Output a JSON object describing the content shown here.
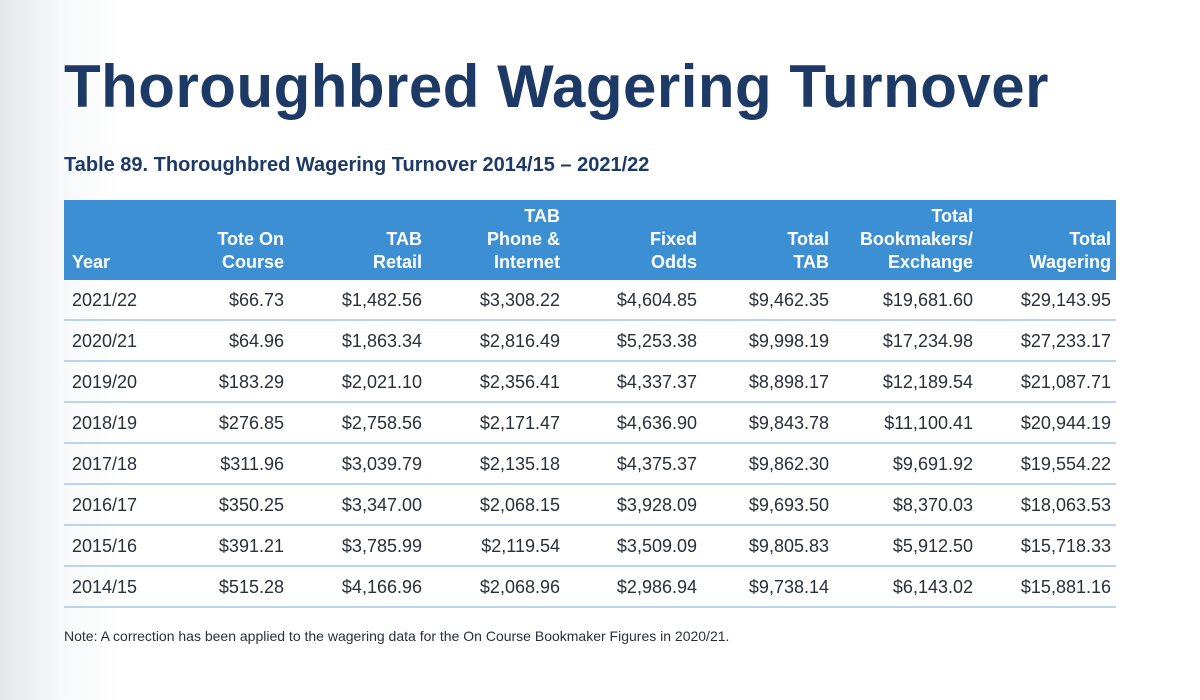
{
  "header": {
    "title": "Thoroughbred Wagering Turnover"
  },
  "table": {
    "caption": "Table 89. Thoroughbred Wagering Turnover 2014/15 – 2021/22",
    "columns": [
      [
        "Year"
      ],
      [
        "Tote On",
        "Course"
      ],
      [
        "TAB",
        "Retail"
      ],
      [
        "TAB",
        "Phone &",
        "Internet"
      ],
      [
        "Fixed",
        "Odds"
      ],
      [
        "Total",
        "TAB"
      ],
      [
        "Total",
        "Bookmakers/",
        "Exchange"
      ],
      [
        "Total",
        "Wagering"
      ]
    ],
    "rows": [
      [
        "2021/22",
        "$66.73",
        "$1,482.56",
        "$3,308.22",
        "$4,604.85",
        "$9,462.35",
        "$19,681.60",
        "$29,143.95"
      ],
      [
        "2020/21",
        "$64.96",
        "$1,863.34",
        "$2,816.49",
        "$5,253.38",
        "$9,998.19",
        "$17,234.98",
        "$27,233.17"
      ],
      [
        "2019/20",
        "$183.29",
        "$2,021.10",
        "$2,356.41",
        "$4,337.37",
        "$8,898.17",
        "$12,189.54",
        "$21,087.71"
      ],
      [
        "2018/19",
        "$276.85",
        "$2,758.56",
        "$2,171.47",
        "$4,636.90",
        "$9,843.78",
        "$11,100.41",
        "$20,944.19"
      ],
      [
        "2017/18",
        "$311.96",
        "$3,039.79",
        "$2,135.18",
        "$4,375.37",
        "$9,862.30",
        "$9,691.92",
        "$19,554.22"
      ],
      [
        "2016/17",
        "$350.25",
        "$3,347.00",
        "$2,068.15",
        "$3,928.09",
        "$9,693.50",
        "$8,370.03",
        "$18,063.53"
      ],
      [
        "2015/16",
        "$391.21",
        "$3,785.99",
        "$2,119.54",
        "$3,509.09",
        "$9,805.83",
        "$5,912.50",
        "$15,718.33"
      ],
      [
        "2014/15",
        "$515.28",
        "$4,166.96",
        "$2,068.96",
        "$2,986.94",
        "$9,738.14",
        "$6,143.02",
        "$15,881.16"
      ]
    ],
    "note": "Note: A correction has been applied to the wagering data for the On Course Bookmaker Figures in 2020/21."
  }
}
